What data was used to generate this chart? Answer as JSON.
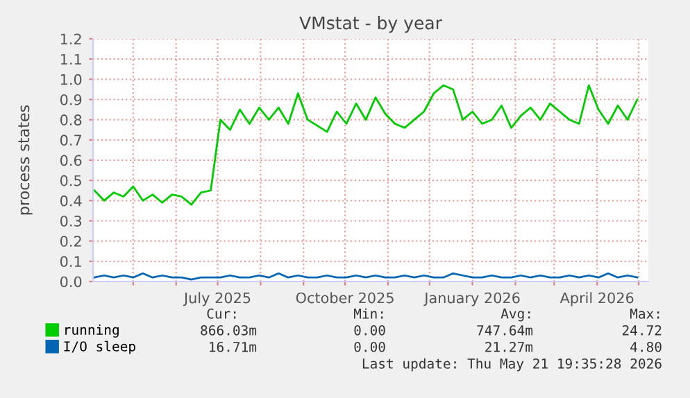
{
  "chart_data": {
    "type": "line",
    "title": "VMstat - by year",
    "ylabel": "process states",
    "x": [
      "2025-04-03",
      "2025-04-10",
      "2025-04-17",
      "2025-04-24",
      "2025-05-01",
      "2025-05-08",
      "2025-05-15",
      "2025-05-22",
      "2025-05-29",
      "2025-06-05",
      "2025-06-12",
      "2025-06-19",
      "2025-06-26",
      "2025-07-03",
      "2025-07-10",
      "2025-07-17",
      "2025-07-24",
      "2025-07-31",
      "2025-08-07",
      "2025-08-14",
      "2025-08-21",
      "2025-08-28",
      "2025-09-04",
      "2025-09-11",
      "2025-09-18",
      "2025-09-25",
      "2025-10-02",
      "2025-10-09",
      "2025-10-16",
      "2025-10-23",
      "2025-10-30",
      "2025-11-06",
      "2025-11-13",
      "2025-11-20",
      "2025-11-27",
      "2025-12-04",
      "2025-12-11",
      "2025-12-18",
      "2025-12-25",
      "2026-01-01",
      "2026-01-08",
      "2026-01-15",
      "2026-01-22",
      "2026-01-29",
      "2026-02-05",
      "2026-02-12",
      "2026-02-19",
      "2026-02-26",
      "2026-03-05",
      "2026-03-12",
      "2026-03-19",
      "2026-03-26",
      "2026-04-02",
      "2026-04-09",
      "2026-04-16",
      "2026-04-23",
      "2026-04-30"
    ],
    "series": [
      {
        "name": "running",
        "color": "#00cc00",
        "values": [
          0.45,
          0.4,
          0.44,
          0.42,
          0.47,
          0.4,
          0.43,
          0.39,
          0.43,
          0.42,
          0.38,
          0.44,
          0.45,
          0.8,
          0.75,
          0.85,
          0.78,
          0.86,
          0.8,
          0.86,
          0.78,
          0.93,
          0.8,
          0.77,
          0.74,
          0.84,
          0.78,
          0.88,
          0.8,
          0.91,
          0.83,
          0.78,
          0.76,
          0.8,
          0.84,
          0.93,
          0.97,
          0.95,
          0.8,
          0.84,
          0.78,
          0.8,
          0.87,
          0.76,
          0.82,
          0.86,
          0.8,
          0.88,
          0.84,
          0.8,
          0.78,
          0.97,
          0.85,
          0.78,
          0.87,
          0.8,
          0.9
        ]
      },
      {
        "name": "I/O sleep",
        "color": "#0066b3",
        "values": [
          0.02,
          0.03,
          0.02,
          0.03,
          0.02,
          0.04,
          0.02,
          0.03,
          0.02,
          0.02,
          0.01,
          0.02,
          0.02,
          0.02,
          0.03,
          0.02,
          0.02,
          0.03,
          0.02,
          0.04,
          0.02,
          0.03,
          0.02,
          0.02,
          0.03,
          0.02,
          0.02,
          0.03,
          0.02,
          0.03,
          0.02,
          0.02,
          0.03,
          0.02,
          0.03,
          0.02,
          0.02,
          0.04,
          0.03,
          0.02,
          0.02,
          0.03,
          0.02,
          0.02,
          0.03,
          0.02,
          0.03,
          0.02,
          0.02,
          0.03,
          0.02,
          0.03,
          0.02,
          0.04,
          0.02,
          0.03,
          0.02
        ]
      }
    ],
    "xlim": [
      "2025-04-02",
      "2026-05-08"
    ],
    "xticks": [
      {
        "value": "2025-05-01",
        "label": null
      },
      {
        "value": "2025-06-01",
        "label": null
      },
      {
        "value": "2025-07-01",
        "label": "July 2025"
      },
      {
        "value": "2025-08-01",
        "label": null
      },
      {
        "value": "2025-09-01",
        "label": null
      },
      {
        "value": "2025-10-01",
        "label": "October 2025"
      },
      {
        "value": "2025-11-01",
        "label": null
      },
      {
        "value": "2025-12-01",
        "label": null
      },
      {
        "value": "2026-01-01",
        "label": "January 2026"
      },
      {
        "value": "2026-02-01",
        "label": null
      },
      {
        "value": "2026-03-01",
        "label": null
      },
      {
        "value": "2026-04-01",
        "label": "April 2026"
      },
      {
        "value": "2026-05-01",
        "label": null
      }
    ],
    "ylim": [
      0,
      1.2
    ],
    "yticks": [
      {
        "value": 0,
        "label": "0.0"
      },
      {
        "value": 0.1,
        "label": "0.1"
      },
      {
        "value": 0.2,
        "label": "0.2"
      },
      {
        "value": 0.3,
        "label": "0.3"
      },
      {
        "value": 0.4,
        "label": "0.4"
      },
      {
        "value": 0.5,
        "label": "0.5"
      },
      {
        "value": 0.6,
        "label": "0.6"
      },
      {
        "value": 0.7,
        "label": "0.7"
      },
      {
        "value": 0.8,
        "label": "0.8"
      },
      {
        "value": 0.9,
        "label": "0.9"
      },
      {
        "value": 1.0,
        "label": "1.0"
      },
      {
        "value": 1.1,
        "label": "1.1"
      },
      {
        "value": 1.2,
        "label": "1.2"
      }
    ],
    "grid": true,
    "legend": "bottom",
    "marker": "none",
    "line_style": "solid",
    "annotations": [
      "Cur:",
      "Min:",
      "Avg:",
      "Max:",
      "866.03m",
      "0.00",
      "747.64m",
      "24.72",
      "16.71m",
      "0.00",
      "21.27m",
      "4.80",
      "Last update: Thu May 21 19:35:28 2026"
    ]
  }
}
